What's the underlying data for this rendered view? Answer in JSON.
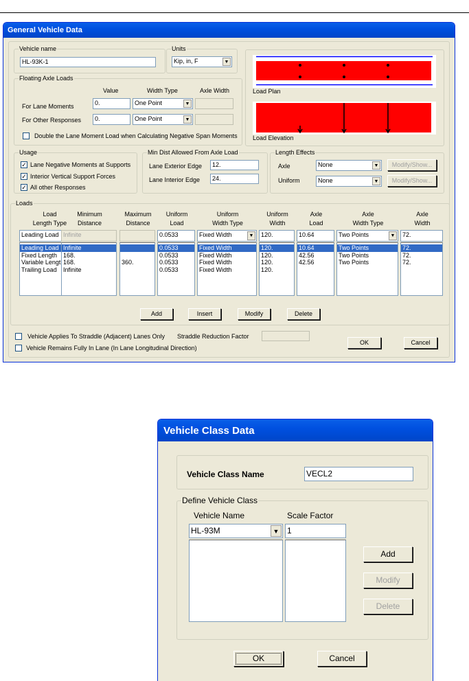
{
  "general_vehicle_data": {
    "title": "General Vehicle Data",
    "vehicle_name": {
      "label": "Vehicle name",
      "value": "HL-93K-1"
    },
    "units": {
      "label": "Units",
      "value": "Kip, in, F"
    },
    "floating_axle_loads": {
      "label": "Floating Axle Loads",
      "col_value": "Value",
      "col_width_type": "Width Type",
      "col_axle_width": "Axle Width",
      "rows": [
        {
          "label": "For Lane Moments",
          "value": "0.",
          "width_type": "One Point",
          "axle_width": ""
        },
        {
          "label": "For Other Responses",
          "value": "0.",
          "width_type": "One Point",
          "axle_width": ""
        }
      ],
      "double_checkbox": {
        "label": "Double the Lane Moment Load when Calculating Negative Span Moments",
        "checked": false
      }
    },
    "preview": {
      "plan_label": "Load Plan",
      "elevation_label": "Load Elevation",
      "colors": {
        "fill": "#FF0000",
        "lane": "#0000FF"
      }
    },
    "usage": {
      "label": "Usage",
      "items": [
        {
          "label": "Lane Negative Moments at Supports",
          "checked": true
        },
        {
          "label": "Interior Vertical Support Forces",
          "checked": true
        },
        {
          "label": "All other Responses",
          "checked": true
        }
      ]
    },
    "min_dist": {
      "label": "Min Dist Allowed From Axle Load",
      "exterior_label": "Lane Exterior Edge",
      "exterior_value": "12.",
      "interior_label": "Lane Interior Edge",
      "interior_value": "24."
    },
    "length_effects": {
      "label": "Length Effects",
      "axle_label": "Axle",
      "axle_value": "None",
      "uniform_label": "Uniform",
      "uniform_value": "None",
      "modify_label": "Modify/Show..."
    },
    "loads": {
      "label": "Loads",
      "headers": [
        "Load\nLength Type",
        "Minimum\nDistance",
        "Maximum\nDistance",
        "Uniform\nLoad",
        "Uniform\nWidth Type",
        "Uniform\nWidth",
        "Axle\nLoad",
        "Axle\nWidth Type",
        "Axle\nWidth"
      ],
      "edit_row": [
        "Leading Load",
        "Infinite",
        "",
        "0.0533",
        "Fixed Width",
        "120.",
        "10.64",
        "Two Points",
        "72."
      ],
      "columns": [
        [
          "Leading Load",
          "Fixed Length",
          "Variable Length",
          "Trailing Load"
        ],
        [
          "Infinite",
          "168.",
          "168.",
          "Infinite"
        ],
        [
          "",
          "",
          "360.",
          ""
        ],
        [
          "0.0533",
          "0.0533",
          "0.0533",
          "0.0533"
        ],
        [
          "Fixed Width",
          "Fixed Width",
          "Fixed Width",
          "Fixed Width"
        ],
        [
          "120.",
          "120.",
          "120.",
          "120."
        ],
        [
          "10.64",
          "42.56",
          "42.56"
        ],
        [
          "Two Points",
          "Two Points",
          "Two Points"
        ],
        [
          "72.",
          "72.",
          "72."
        ]
      ],
      "buttons": {
        "add": "Add",
        "insert": "Insert",
        "modify": "Modify",
        "delete": "Delete"
      }
    },
    "straddle_checkbox": {
      "label": "Vehicle Applies To Straddle (Adjacent) Lanes Only",
      "checked": false
    },
    "straddle_factor_label": "Straddle Reduction Factor",
    "in_lane_checkbox": {
      "label": "Vehicle Remains Fully In Lane (In Lane Longitudinal Direction)",
      "checked": false
    },
    "ok": "OK",
    "cancel": "Cancel"
  },
  "vehicle_class_data": {
    "title": "Vehicle Class Data",
    "class_name_label": "Vehicle Class Name",
    "class_name_value": "VECL2",
    "define_label": "Define Vehicle Class",
    "vehicle_name_label": "Vehicle Name",
    "scale_factor_label": "Scale Factor",
    "vehicle_name_value": "HL-93M",
    "scale_factor_value": "1",
    "add": "Add",
    "modify": "Modify",
    "delete": "Delete",
    "ok": "OK",
    "cancel": "Cancel"
  }
}
